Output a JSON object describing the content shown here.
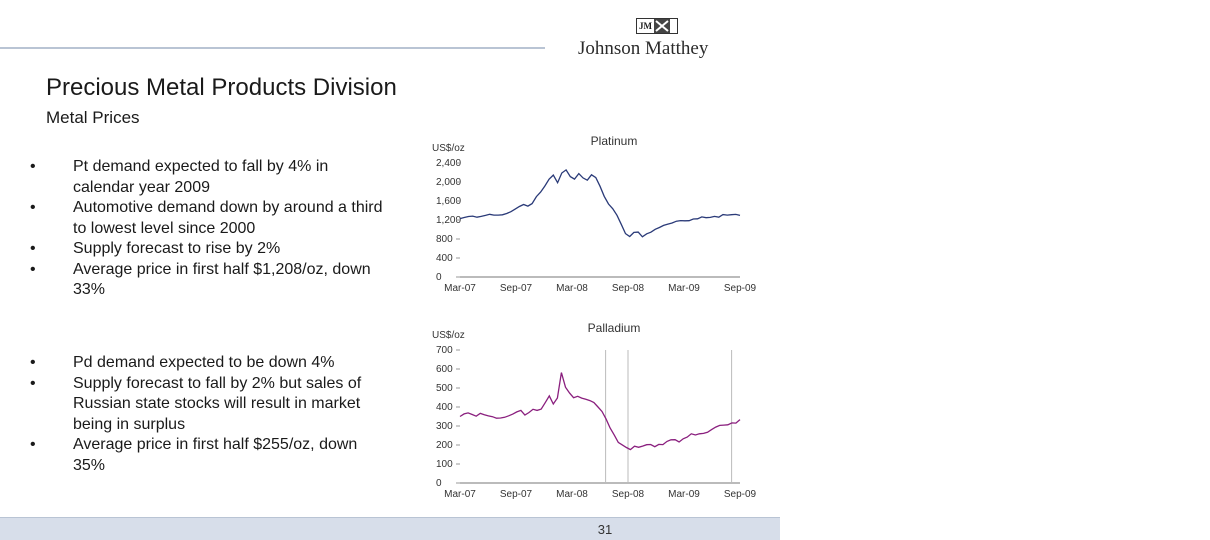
{
  "brand": {
    "name": "Johnson Matthey",
    "mark": "JM"
  },
  "title": "Precious Metal Products Division",
  "subtitle": "Metal Prices",
  "bullets_platinum": [
    "Pt demand expected to fall by 4% in calendar year 2009",
    "Automotive demand down by around a third to lowest level since 2000",
    "Supply forecast to rise by 2%",
    "Average price in first half $1,208/oz, down 33%"
  ],
  "bullets_palladium": [
    "Pd demand expected to be down 4%",
    "Supply forecast to fall by 2% but sales of Russian state stocks will result in market being in surplus",
    "Average price in first half $255/oz, down 35%"
  ],
  "page_number": "31",
  "colors": {
    "platinum_line": "#2a3a78",
    "palladium_line": "#8a1f7e",
    "footer": "#d7deea"
  },
  "chart_data": [
    {
      "type": "line",
      "title": "Platinum",
      "ylabel": "US$/oz",
      "ylim": [
        0,
        2400
      ],
      "yticks": [
        "0",
        "400",
        "800",
        "1,200",
        "1,600",
        "2,000",
        "2,400"
      ],
      "xtick_labels": [
        "Mar-07",
        "Sep-07",
        "Mar-08",
        "Sep-08",
        "Mar-09",
        "Sep-09"
      ],
      "grid": false,
      "series": [
        {
          "values": [
            1230,
            1240,
            1260,
            1280,
            1270,
            1290,
            1300,
            1310,
            1290,
            1300,
            1320,
            1350,
            1380,
            1420,
            1470,
            1520,
            1500,
            1560,
            1700,
            1780,
            1900,
            2050,
            2150,
            2000,
            2200,
            2250,
            2100,
            2050,
            2180,
            2100,
            2050,
            2150,
            2080,
            1900,
            1700,
            1550,
            1450,
            1300,
            1100,
            900,
            850,
            950,
            960,
            850,
            900,
            930,
            1000,
            1050,
            1100,
            1120,
            1130,
            1160,
            1180,
            1190,
            1200,
            1230,
            1220,
            1250,
            1240,
            1260,
            1290,
            1270,
            1310,
            1290,
            1300,
            1320,
            1310
          ]
        }
      ]
    },
    {
      "type": "line",
      "title": "Palladium",
      "ylabel": "US$/oz",
      "ylim": [
        0,
        700
      ],
      "yticks": [
        "0",
        "100",
        "200",
        "300",
        "400",
        "500",
        "600",
        "700"
      ],
      "xtick_labels": [
        "Mar-07",
        "Sep-07",
        "Mar-08",
        "Sep-08",
        "Mar-09",
        "Sep-09"
      ],
      "grid": false,
      "series": [
        {
          "values": [
            350,
            360,
            365,
            360,
            355,
            370,
            360,
            350,
            345,
            340,
            345,
            350,
            355,
            360,
            370,
            380,
            360,
            375,
            390,
            380,
            385,
            420,
            460,
            420,
            450,
            580,
            500,
            470,
            450,
            460,
            450,
            440,
            430,
            420,
            400,
            380,
            340,
            290,
            250,
            210,
            200,
            190,
            180,
            195,
            185,
            190,
            200,
            205,
            195,
            205,
            200,
            215,
            225,
            230,
            220,
            235,
            240,
            255,
            250,
            260,
            265,
            270,
            280,
            290,
            300,
            305,
            310,
            320,
            315,
            330
          ]
        }
      ]
    }
  ]
}
